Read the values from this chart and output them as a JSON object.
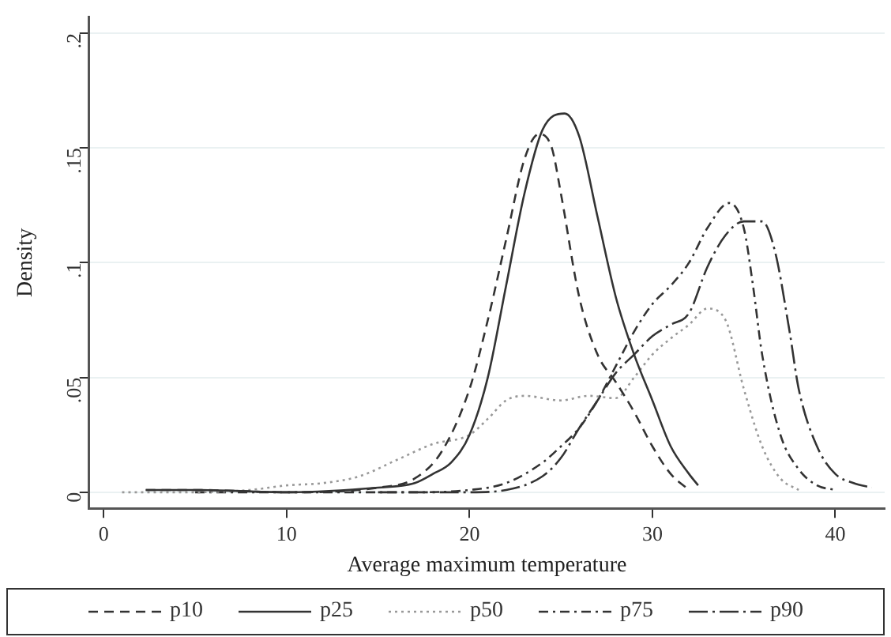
{
  "chart_data": {
    "type": "line",
    "xlabel": "Average maximum temperature",
    "ylabel": "Density",
    "xlim": [
      -0.8,
      42.7
    ],
    "xticks": [
      0,
      10,
      20,
      30,
      40
    ],
    "ylim": [
      -0.007,
      0.207
    ],
    "yticks": [
      {
        "value": 0,
        "label": "0"
      },
      {
        "value": 0.05,
        "label": ".05"
      },
      {
        "value": 0.1,
        "label": ".1"
      },
      {
        "value": 0.15,
        "label": ".15"
      },
      {
        "value": 0.2,
        "label": ".2"
      }
    ],
    "grid": "y",
    "legend": "bottom",
    "marker": "none",
    "series": [
      {
        "name": "p10",
        "color": "#333333",
        "line_style": "dashed",
        "x": [
          2.3,
          5,
          10,
          15,
          17,
          18.5,
          20,
          21,
          22,
          23,
          23.8,
          24.5,
          25,
          26,
          27,
          28,
          29,
          30,
          31,
          32
        ],
        "values": [
          0.001,
          0.001,
          0,
          0.002,
          0.006,
          0.018,
          0.045,
          0.075,
          0.11,
          0.145,
          0.156,
          0.15,
          0.13,
          0.085,
          0.06,
          0.048,
          0.035,
          0.02,
          0.008,
          0.001
        ]
      },
      {
        "name": "p25",
        "color": "#333333",
        "line_style": "solid",
        "x": [
          2.3,
          5,
          10,
          15,
          17,
          18,
          19,
          20,
          21,
          22,
          23,
          24,
          25.2,
          26,
          27,
          28,
          29,
          30,
          31,
          32,
          32.5
        ],
        "values": [
          0.001,
          0.001,
          0,
          0.002,
          0.004,
          0.008,
          0.013,
          0.025,
          0.05,
          0.09,
          0.13,
          0.158,
          0.165,
          0.155,
          0.12,
          0.085,
          0.06,
          0.04,
          0.02,
          0.008,
          0.003
        ]
      },
      {
        "name": "p50",
        "color": "#999999",
        "line_style": "dotted",
        "x": [
          1,
          5,
          8,
          10,
          12,
          14,
          16,
          18,
          20,
          21,
          22,
          23,
          25,
          26.5,
          28,
          29,
          30,
          31,
          32,
          33,
          34,
          35,
          36,
          37,
          38
        ],
        "values": [
          0,
          0,
          0.001,
          0.003,
          0.004,
          0.007,
          0.014,
          0.021,
          0.025,
          0.032,
          0.04,
          0.042,
          0.04,
          0.042,
          0.041,
          0.05,
          0.06,
          0.067,
          0.073,
          0.08,
          0.075,
          0.045,
          0.02,
          0.006,
          0.001
        ]
      },
      {
        "name": "p75",
        "color": "#333333",
        "line_style": "dashdot",
        "x": [
          5,
          10,
          15,
          17,
          20,
          22,
          24,
          25,
          26,
          27,
          28,
          29,
          30,
          31,
          32,
          33,
          34.2,
          35,
          35.5,
          36,
          37,
          38,
          39,
          40
        ],
        "values": [
          0,
          0,
          0,
          0,
          0.001,
          0.004,
          0.013,
          0.02,
          0.028,
          0.04,
          0.055,
          0.07,
          0.082,
          0.09,
          0.1,
          0.115,
          0.126,
          0.115,
          0.09,
          0.06,
          0.025,
          0.01,
          0.003,
          0.001
        ]
      },
      {
        "name": "p90",
        "color": "#333333",
        "line_style": "longdashdot",
        "x": [
          15,
          20,
          22,
          24,
          25,
          26,
          27,
          28,
          29,
          30,
          31,
          32,
          33,
          34,
          35,
          36,
          36.7,
          37.5,
          38,
          39,
          40,
          41,
          42
        ],
        "values": [
          0,
          0,
          0.001,
          0.007,
          0.015,
          0.028,
          0.04,
          0.052,
          0.06,
          0.068,
          0.073,
          0.078,
          0.098,
          0.112,
          0.118,
          0.118,
          0.105,
          0.07,
          0.045,
          0.02,
          0.008,
          0.004,
          0.002
        ]
      }
    ]
  }
}
